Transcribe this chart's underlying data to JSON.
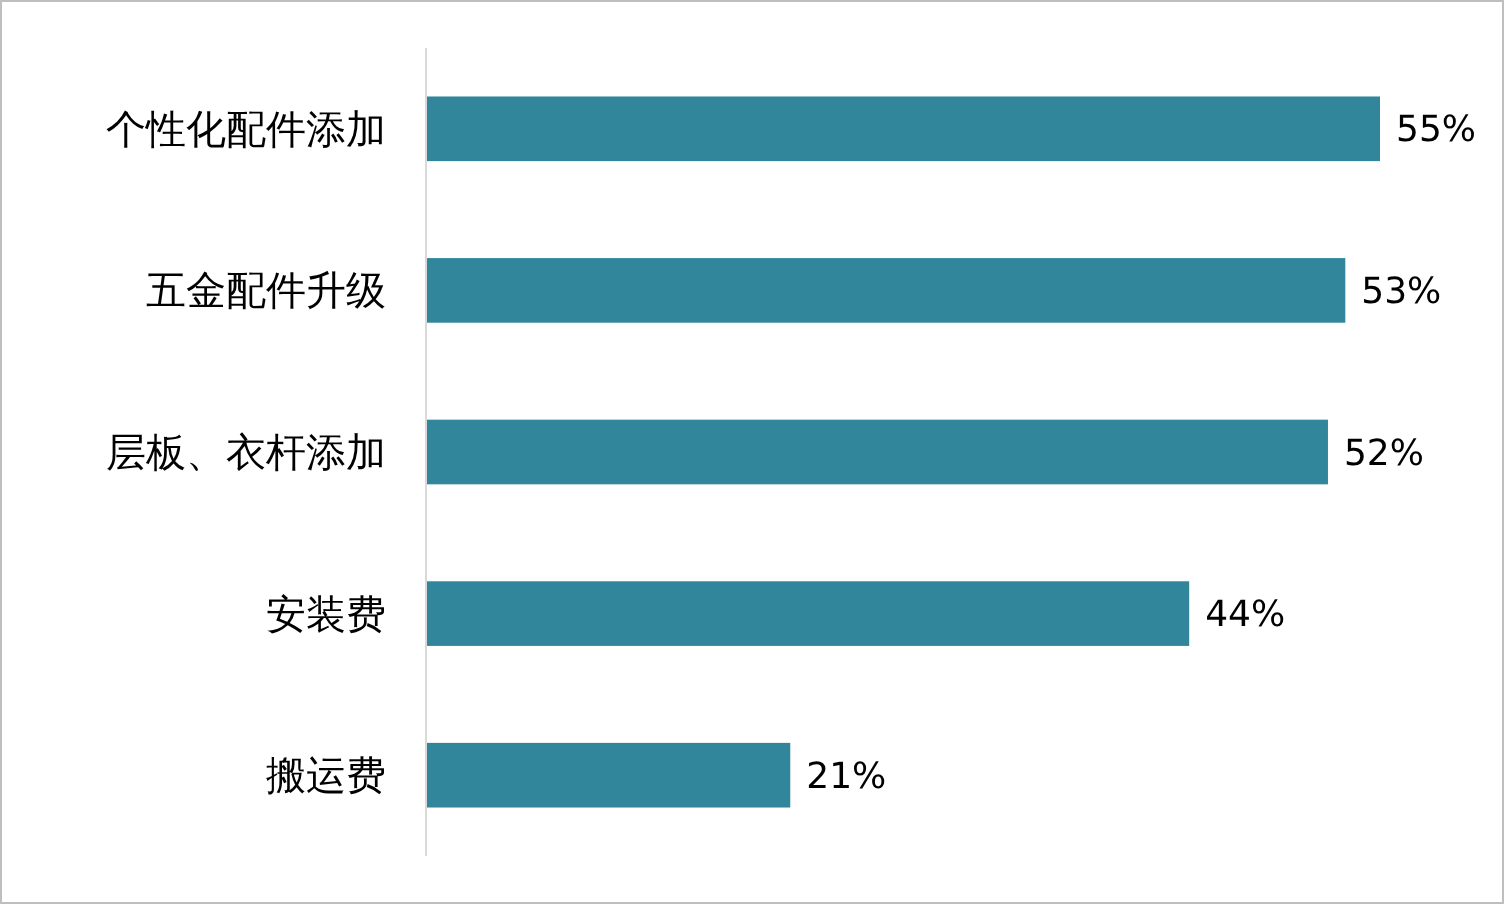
{
  "chart_data": {
    "type": "bar",
    "orientation": "horizontal",
    "color": "#31869b",
    "categories": [
      "个性化配件添加",
      "五金配件升级",
      "层板、衣杆添加",
      "安装费",
      "搬运费"
    ],
    "values": [
      55,
      53,
      52,
      44,
      21
    ],
    "value_labels": [
      "55%",
      "53%",
      "52%",
      "44%",
      "21%"
    ]
  }
}
